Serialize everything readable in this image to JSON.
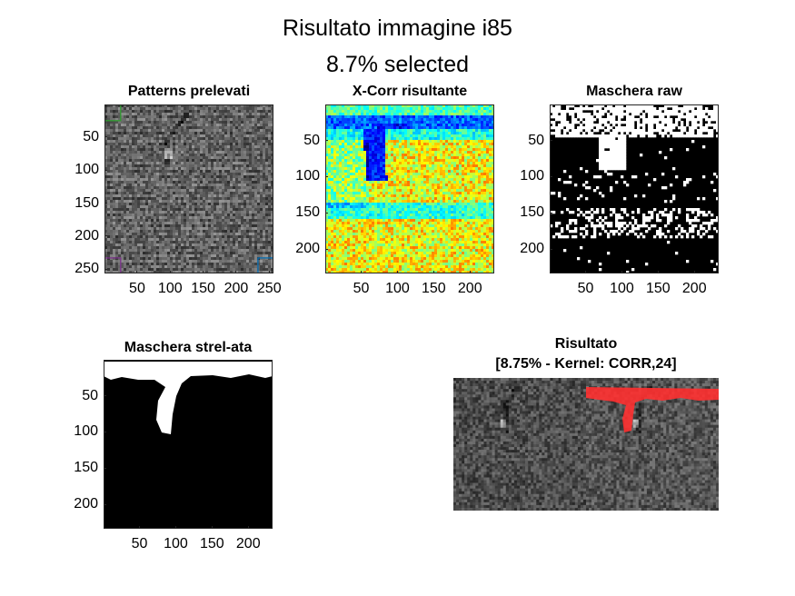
{
  "figure": {
    "title_line1": "Risultato immagine i85",
    "title_line2": "8.7% selected"
  },
  "chart_data": [
    {
      "type": "heatmap",
      "title": "Patterns prelevati",
      "colormap": "gray",
      "xlim": [
        0.5,
        256.5
      ],
      "ylim": [
        0.5,
        256.5
      ],
      "x_ticks": [
        "50",
        "100",
        "150",
        "200",
        "250"
      ],
      "y_ticks": [
        "50",
        "100",
        "150",
        "200",
        "250"
      ],
      "pattern_boxes": [
        {
          "color": "#2ca02c",
          "x": [
            1,
            24
          ],
          "y": [
            1,
            24
          ]
        },
        {
          "color": "#7e2f8e",
          "x": [
            1,
            24
          ],
          "y": [
            233,
            256
          ]
        },
        {
          "color": "#0072bd",
          "x": [
            233,
            256
          ],
          "y": [
            233,
            256
          ]
        }
      ]
    },
    {
      "type": "heatmap",
      "title": "X-Corr risultante",
      "colormap": "jet",
      "xlim": [
        0.5,
        233.5
      ],
      "ylim": [
        0.5,
        233.5
      ],
      "x_ticks": [
        "50",
        "100",
        "150",
        "200"
      ],
      "y_ticks": [
        "50",
        "100",
        "150",
        "200"
      ]
    },
    {
      "type": "heatmap",
      "title": "Maschera raw",
      "colormap": "binary",
      "xlim": [
        0.5,
        233.5
      ],
      "ylim": [
        0.5,
        233.5
      ],
      "x_ticks": [
        "50",
        "100",
        "150",
        "200"
      ],
      "y_ticks": [
        "50",
        "100",
        "150",
        "200"
      ]
    },
    {
      "type": "heatmap",
      "title": "Maschera strel-ata",
      "colormap": "binary",
      "xlim": [
        0.5,
        233.5
      ],
      "ylim": [
        0.5,
        233.5
      ],
      "x_ticks": [
        "50",
        "100",
        "150",
        "200"
      ],
      "y_ticks": [
        "50",
        "100",
        "150",
        "200"
      ]
    },
    {
      "type": "heatmap",
      "title": "Risultato",
      "subtitle": "[8.75% - Kernel: CORR,24]",
      "colormap": "gray with red overlay",
      "overlay_color": "#ff3030",
      "selected_percent": 8.75,
      "kernel": "CORR,24"
    }
  ]
}
